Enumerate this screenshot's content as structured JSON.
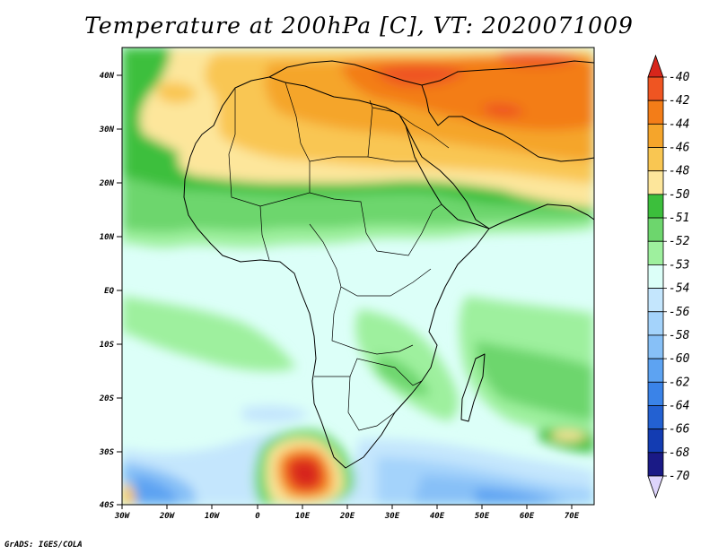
{
  "title": "Temperature at 200hPa [C], VT: 2020071009",
  "footer": "GrADS: IGES/COLA",
  "map": {
    "lat_labels": [
      "40N",
      "30N",
      "20N",
      "10N",
      "EQ",
      "10S",
      "20S",
      "30S",
      "40S"
    ],
    "lon_labels": [
      "30W",
      "20W",
      "10W",
      "0",
      "10E",
      "20E",
      "30E",
      "40E",
      "50E",
      "60E",
      "70E"
    ],
    "lat_range": [
      -40,
      45
    ],
    "lon_range": [
      -30,
      75
    ]
  },
  "colorbar": {
    "levels": [
      "-40",
      "-42",
      "-44",
      "-46",
      "-48",
      "-50",
      "-51",
      "-52",
      "-53",
      "-54",
      "-56",
      "-58",
      "-60",
      "-62",
      "-64",
      "-66",
      "-68",
      "-70"
    ],
    "colors": [
      "#d7261b",
      "#ef5522",
      "#f37d18",
      "#f5a52b",
      "#f9c652",
      "#fde69b",
      "#3cbf3c",
      "#6dd66d",
      "#9ef09e",
      "#dcfff8",
      "#c4e6fd",
      "#a4d3fb",
      "#87c0f7",
      "#5da3f2",
      "#3a83e8",
      "#2361d2",
      "#133cb2",
      "#1a1a86",
      "#ddd4fb"
    ]
  }
}
